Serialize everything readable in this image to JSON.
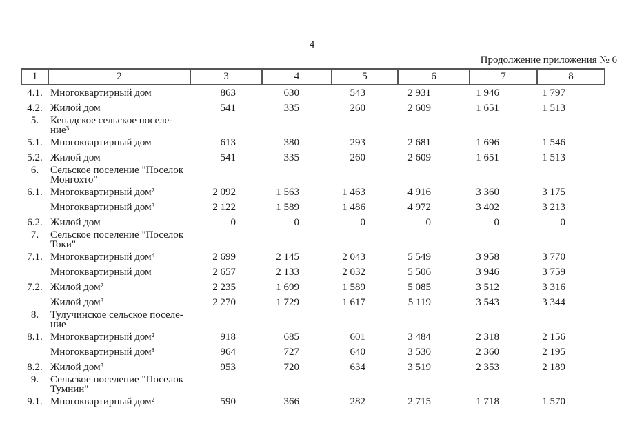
{
  "page": {
    "number": "4",
    "continuation_note": "Продолжение приложения № 6"
  },
  "colors": {
    "background": "#ffffff",
    "text": "#1c1c1c",
    "table_border": "#555555"
  },
  "table": {
    "header": [
      "1",
      "2",
      "3",
      "4",
      "5",
      "6",
      "7",
      "8"
    ],
    "rows": [
      {
        "type": "data",
        "num": "4.1.",
        "label": "Многоквартирный дом",
        "values": [
          "863",
          "630",
          "543",
          "2 931",
          "1 946",
          "1 797"
        ]
      },
      {
        "type": "data",
        "num": "4.2.",
        "label": "Жилой дом",
        "values": [
          "541",
          "335",
          "260",
          "2 609",
          "1 651",
          "1 513"
        ]
      },
      {
        "type": "section",
        "num": "5.",
        "label": "Кенадское сельское поселе-\nние³",
        "values": [
          "",
          "",
          "",
          "",
          "",
          ""
        ]
      },
      {
        "type": "data",
        "num": "5.1.",
        "label": "Многоквартирный дом",
        "values": [
          "613",
          "380",
          "293",
          "2 681",
          "1 696",
          "1 546"
        ]
      },
      {
        "type": "data",
        "num": "5.2.",
        "label": "Жилой дом",
        "values": [
          "541",
          "335",
          "260",
          "2 609",
          "1 651",
          "1 513"
        ]
      },
      {
        "type": "section",
        "num": "6.",
        "label": "Сельское поселение \"Поселок\nМонгохто\"",
        "values": [
          "",
          "",
          "",
          "",
          "",
          ""
        ]
      },
      {
        "type": "data",
        "num": "6.1.",
        "label": "Многоквартирный дом²",
        "values": [
          "2 092",
          "1 563",
          "1 463",
          "4 916",
          "3 360",
          "3 175"
        ]
      },
      {
        "type": "data",
        "num": "",
        "label": "Многоквартирный дом³",
        "values": [
          "2 122",
          "1 589",
          "1 486",
          "4 972",
          "3 402",
          "3 213"
        ]
      },
      {
        "type": "data",
        "num": "6.2.",
        "label": "Жилой дом",
        "values": [
          "0",
          "0",
          "0",
          "0",
          "0",
          "0"
        ]
      },
      {
        "type": "section",
        "num": "7.",
        "label": "Сельское поселение \"Поселок\nТоки\"",
        "values": [
          "",
          "",
          "",
          "",
          "",
          ""
        ]
      },
      {
        "type": "data",
        "num": "7.1.",
        "label": "Многоквартирный дом⁴",
        "values": [
          "2 699",
          "2 145",
          "2 043",
          "5 549",
          "3 958",
          "3 770"
        ]
      },
      {
        "type": "data",
        "num": "",
        "label": "Многоквартирный дом",
        "values": [
          "2 657",
          "2 133",
          "2 032",
          "5 506",
          "3 946",
          "3 759"
        ]
      },
      {
        "type": "data",
        "num": "7.2.",
        "label": "Жилой дом²",
        "values": [
          "2 235",
          "1 699",
          "1 589",
          "5 085",
          "3 512",
          "3 316"
        ]
      },
      {
        "type": "data",
        "num": "",
        "label": "Жилой дом³",
        "values": [
          "2 270",
          "1 729",
          "1 617",
          "5 119",
          "3 543",
          "3 344"
        ]
      },
      {
        "type": "section",
        "num": "8.",
        "label": "Тулучинское сельское поселе-\nние",
        "values": [
          "",
          "",
          "",
          "",
          "",
          ""
        ]
      },
      {
        "type": "data",
        "num": "8.1.",
        "label": "Многоквартирный дом²",
        "values": [
          "918",
          "685",
          "601",
          "3 484",
          "2 318",
          "2 156"
        ]
      },
      {
        "type": "data",
        "num": "",
        "label": "Многоквартирный дом³",
        "values": [
          "964",
          "727",
          "640",
          "3 530",
          "2 360",
          "2 195"
        ]
      },
      {
        "type": "data",
        "num": "8.2.",
        "label": "Жилой дом³",
        "values": [
          "953",
          "720",
          "634",
          "3 519",
          "2 353",
          "2 189"
        ]
      },
      {
        "type": "section",
        "num": "9.",
        "label": "Сельское поселение \"Поселок\nТумнин\"",
        "values": [
          "",
          "",
          "",
          "",
          "",
          ""
        ]
      },
      {
        "type": "data",
        "num": "9.1.",
        "label": "Многоквартирный дом²",
        "values": [
          "590",
          "366",
          "282",
          "2 715",
          "1 718",
          "1 570"
        ]
      }
    ]
  }
}
